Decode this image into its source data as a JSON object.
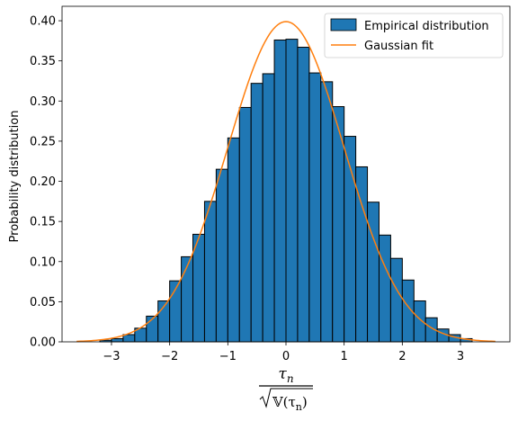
{
  "chart_data": {
    "type": "bar",
    "title": "",
    "ylabel": "Probability distribution",
    "xlabel": {
      "numerator": "τ",
      "numerator_sub": "n",
      "denominator_prefix": "𝕍(τ",
      "denominator_sub": "n",
      "denominator_suffix": ")"
    },
    "xlim": [
      -3.85,
      3.85
    ],
    "ylim": [
      0,
      0.418
    ],
    "xticks": [
      -3,
      -2,
      -1,
      0,
      1,
      2,
      3
    ],
    "xtick_labels": [
      "−3",
      "−2",
      "−1",
      "0",
      "1",
      "2",
      "3"
    ],
    "yticks": [
      0.0,
      0.05,
      0.1,
      0.15,
      0.2,
      0.25,
      0.3,
      0.35,
      0.4
    ],
    "ytick_labels": [
      "0.00",
      "0.05",
      "0.10",
      "0.15",
      "0.20",
      "0.25",
      "0.30",
      "0.35",
      "0.40"
    ],
    "grid": false,
    "legend_position": "top-right",
    "bin_width": 0.2,
    "bin_centers": [
      -3.1,
      -2.9,
      -2.7,
      -2.5,
      -2.3,
      -2.1,
      -1.9,
      -1.7,
      -1.5,
      -1.3,
      -1.1,
      -0.9,
      -0.7,
      -0.5,
      -0.3,
      -0.1,
      0.1,
      0.3,
      0.5,
      0.7,
      0.9,
      1.1,
      1.3,
      1.5,
      1.7,
      1.9,
      2.1,
      2.3,
      2.5,
      2.7,
      2.9,
      3.1
    ],
    "series": [
      {
        "name": "Empirical distribution",
        "kind": "histogram",
        "color": "#1f77b4",
        "edgecolor": "#000000",
        "values": [
          0.002,
          0.004,
          0.009,
          0.017,
          0.032,
          0.051,
          0.076,
          0.106,
          0.134,
          0.175,
          0.215,
          0.254,
          0.292,
          0.322,
          0.334,
          0.376,
          0.377,
          0.367,
          0.335,
          0.324,
          0.293,
          0.256,
          0.218,
          0.174,
          0.133,
          0.104,
          0.077,
          0.051,
          0.03,
          0.016,
          0.009,
          0.004
        ]
      },
      {
        "name": "Gaussian fit",
        "kind": "line",
        "color": "#ff7f0e",
        "mean": 0,
        "std": 1,
        "x_range": [
          -3.6,
          3.6
        ]
      }
    ]
  }
}
